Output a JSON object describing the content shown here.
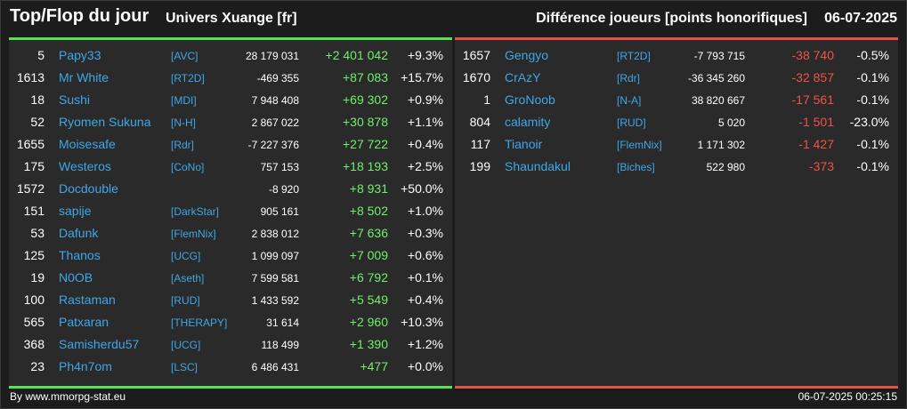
{
  "header": {
    "title": "Top/Flop du jour",
    "universe": "Univers Xuange [fr]",
    "subtitle": "Différence joueurs [points honorifiques]",
    "date": "06-07-2025"
  },
  "top": [
    {
      "rank": "5",
      "name": "Papy33",
      "ally": "[AVC]",
      "points": "28 179 031",
      "delta": "+2 401 042",
      "pct": "+9.3%"
    },
    {
      "rank": "1613",
      "name": "Mr White",
      "ally": "[RT2D]",
      "points": "-469 355",
      "delta": "+87 083",
      "pct": "+15.7%"
    },
    {
      "rank": "18",
      "name": "Sushi",
      "ally": "[MDI]",
      "points": "7 948 408",
      "delta": "+69 302",
      "pct": "+0.9%"
    },
    {
      "rank": "52",
      "name": "Ryomen Sukuna",
      "ally": "[N-H]",
      "points": "2 867 022",
      "delta": "+30 878",
      "pct": "+1.1%"
    },
    {
      "rank": "1655",
      "name": "Moisesafe",
      "ally": "[Rdr]",
      "points": "-7 227 376",
      "delta": "+27 722",
      "pct": "+0.4%"
    },
    {
      "rank": "175",
      "name": "Westeros",
      "ally": "[CoNo]",
      "points": "757 153",
      "delta": "+18 193",
      "pct": "+2.5%"
    },
    {
      "rank": "1572",
      "name": "Docdouble",
      "ally": "",
      "points": "-8 920",
      "delta": "+8 931",
      "pct": "+50.0%"
    },
    {
      "rank": "151",
      "name": "sapije",
      "ally": "[DarkStar]",
      "points": "905 161",
      "delta": "+8 502",
      "pct": "+1.0%"
    },
    {
      "rank": "53",
      "name": "Dafunk",
      "ally": "[FlemNix]",
      "points": "2 838 012",
      "delta": "+7 636",
      "pct": "+0.3%"
    },
    {
      "rank": "125",
      "name": "Thanos",
      "ally": "[UCG]",
      "points": "1 099 097",
      "delta": "+7 009",
      "pct": "+0.6%"
    },
    {
      "rank": "19",
      "name": "N0OB",
      "ally": "[Aseth]",
      "points": "7 599 581",
      "delta": "+6 792",
      "pct": "+0.1%"
    },
    {
      "rank": "100",
      "name": "Rastaman",
      "ally": "[RUD]",
      "points": "1 433 592",
      "delta": "+5 549",
      "pct": "+0.4%"
    },
    {
      "rank": "565",
      "name": "Patxaran",
      "ally": "[THERAPY]",
      "points": "31 614",
      "delta": "+2 960",
      "pct": "+10.3%"
    },
    {
      "rank": "368",
      "name": "Samisherdu57",
      "ally": "[UCG]",
      "points": "118 499",
      "delta": "+1 390",
      "pct": "+1.2%"
    },
    {
      "rank": "23",
      "name": "Ph4n7om",
      "ally": "[LSC]",
      "points": "6 486 431",
      "delta": "+477",
      "pct": "+0.0%"
    }
  ],
  "flop": [
    {
      "rank": "1657",
      "name": "Gengyo",
      "ally": "[RT2D]",
      "points": "-7 793 715",
      "delta": "-38 740",
      "pct": "-0.5%"
    },
    {
      "rank": "1670",
      "name": "CrAzY",
      "ally": "[Rdr]",
      "points": "-36 345 260",
      "delta": "-32 857",
      "pct": "-0.1%"
    },
    {
      "rank": "1",
      "name": "GroNoob",
      "ally": "[N-A]",
      "points": "38 820 667",
      "delta": "-17 561",
      "pct": "-0.1%"
    },
    {
      "rank": "804",
      "name": "calamity",
      "ally": "[RUD]",
      "points": "5 020",
      "delta": "-1 501",
      "pct": "-23.0%"
    },
    {
      "rank": "117",
      "name": "Tianoir",
      "ally": "[FlemNix]",
      "points": "1 171 302",
      "delta": "-1 427",
      "pct": "-0.1%"
    },
    {
      "rank": "199",
      "name": "Shaundakul",
      "ally": "[Biches]",
      "points": "522 980",
      "delta": "-373",
      "pct": "-0.1%"
    }
  ],
  "footer": {
    "credit": "By www.mmorpg-stat.eu",
    "timestamp": "06-07-2025 00:25:15"
  },
  "colors": {
    "top_accent": "#57e05a",
    "flop_accent": "#e0524a",
    "name_color": "#3fa7e8"
  }
}
